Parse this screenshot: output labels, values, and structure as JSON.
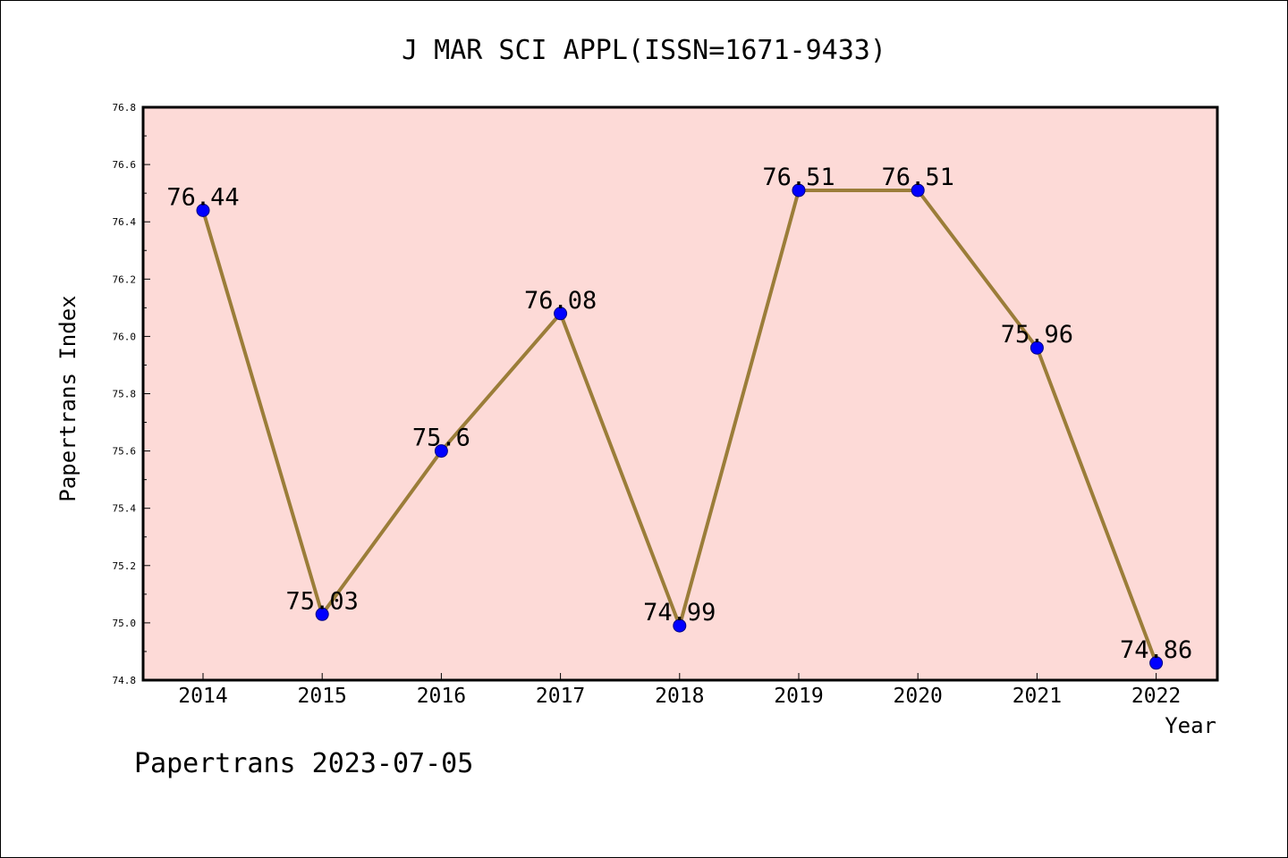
{
  "chart_data": {
    "type": "line",
    "title": "J MAR SCI APPL(ISSN=1671-9433)",
    "xlabel": "Year",
    "ylabel": "Papertrans Index",
    "categories": [
      "2014",
      "2015",
      "2016",
      "2017",
      "2018",
      "2019",
      "2020",
      "2021",
      "2022"
    ],
    "series": [
      {
        "values": [
          76.44,
          75.03,
          75.6,
          76.08,
          74.99,
          76.51,
          76.51,
          75.96,
          74.86
        ],
        "labels": [
          "76.44",
          "75.03",
          "75.6",
          "76.08",
          "74.99",
          "76.51",
          "76.51",
          "75.96",
          "74.86"
        ]
      }
    ],
    "ylim": [
      74.8,
      76.8
    ],
    "yticks": [
      "74.8",
      "75.0",
      "75.2",
      "75.4",
      "75.6",
      "75.8",
      "76.0",
      "76.2",
      "76.4",
      "76.6",
      "76.8"
    ],
    "grid": false,
    "footer": "Papertrans 2023-07-05",
    "colors": {
      "plot_background": "#fddad7",
      "line": "#9b7d39",
      "marker": "#0000ff",
      "marker_edge": "#000080"
    }
  }
}
